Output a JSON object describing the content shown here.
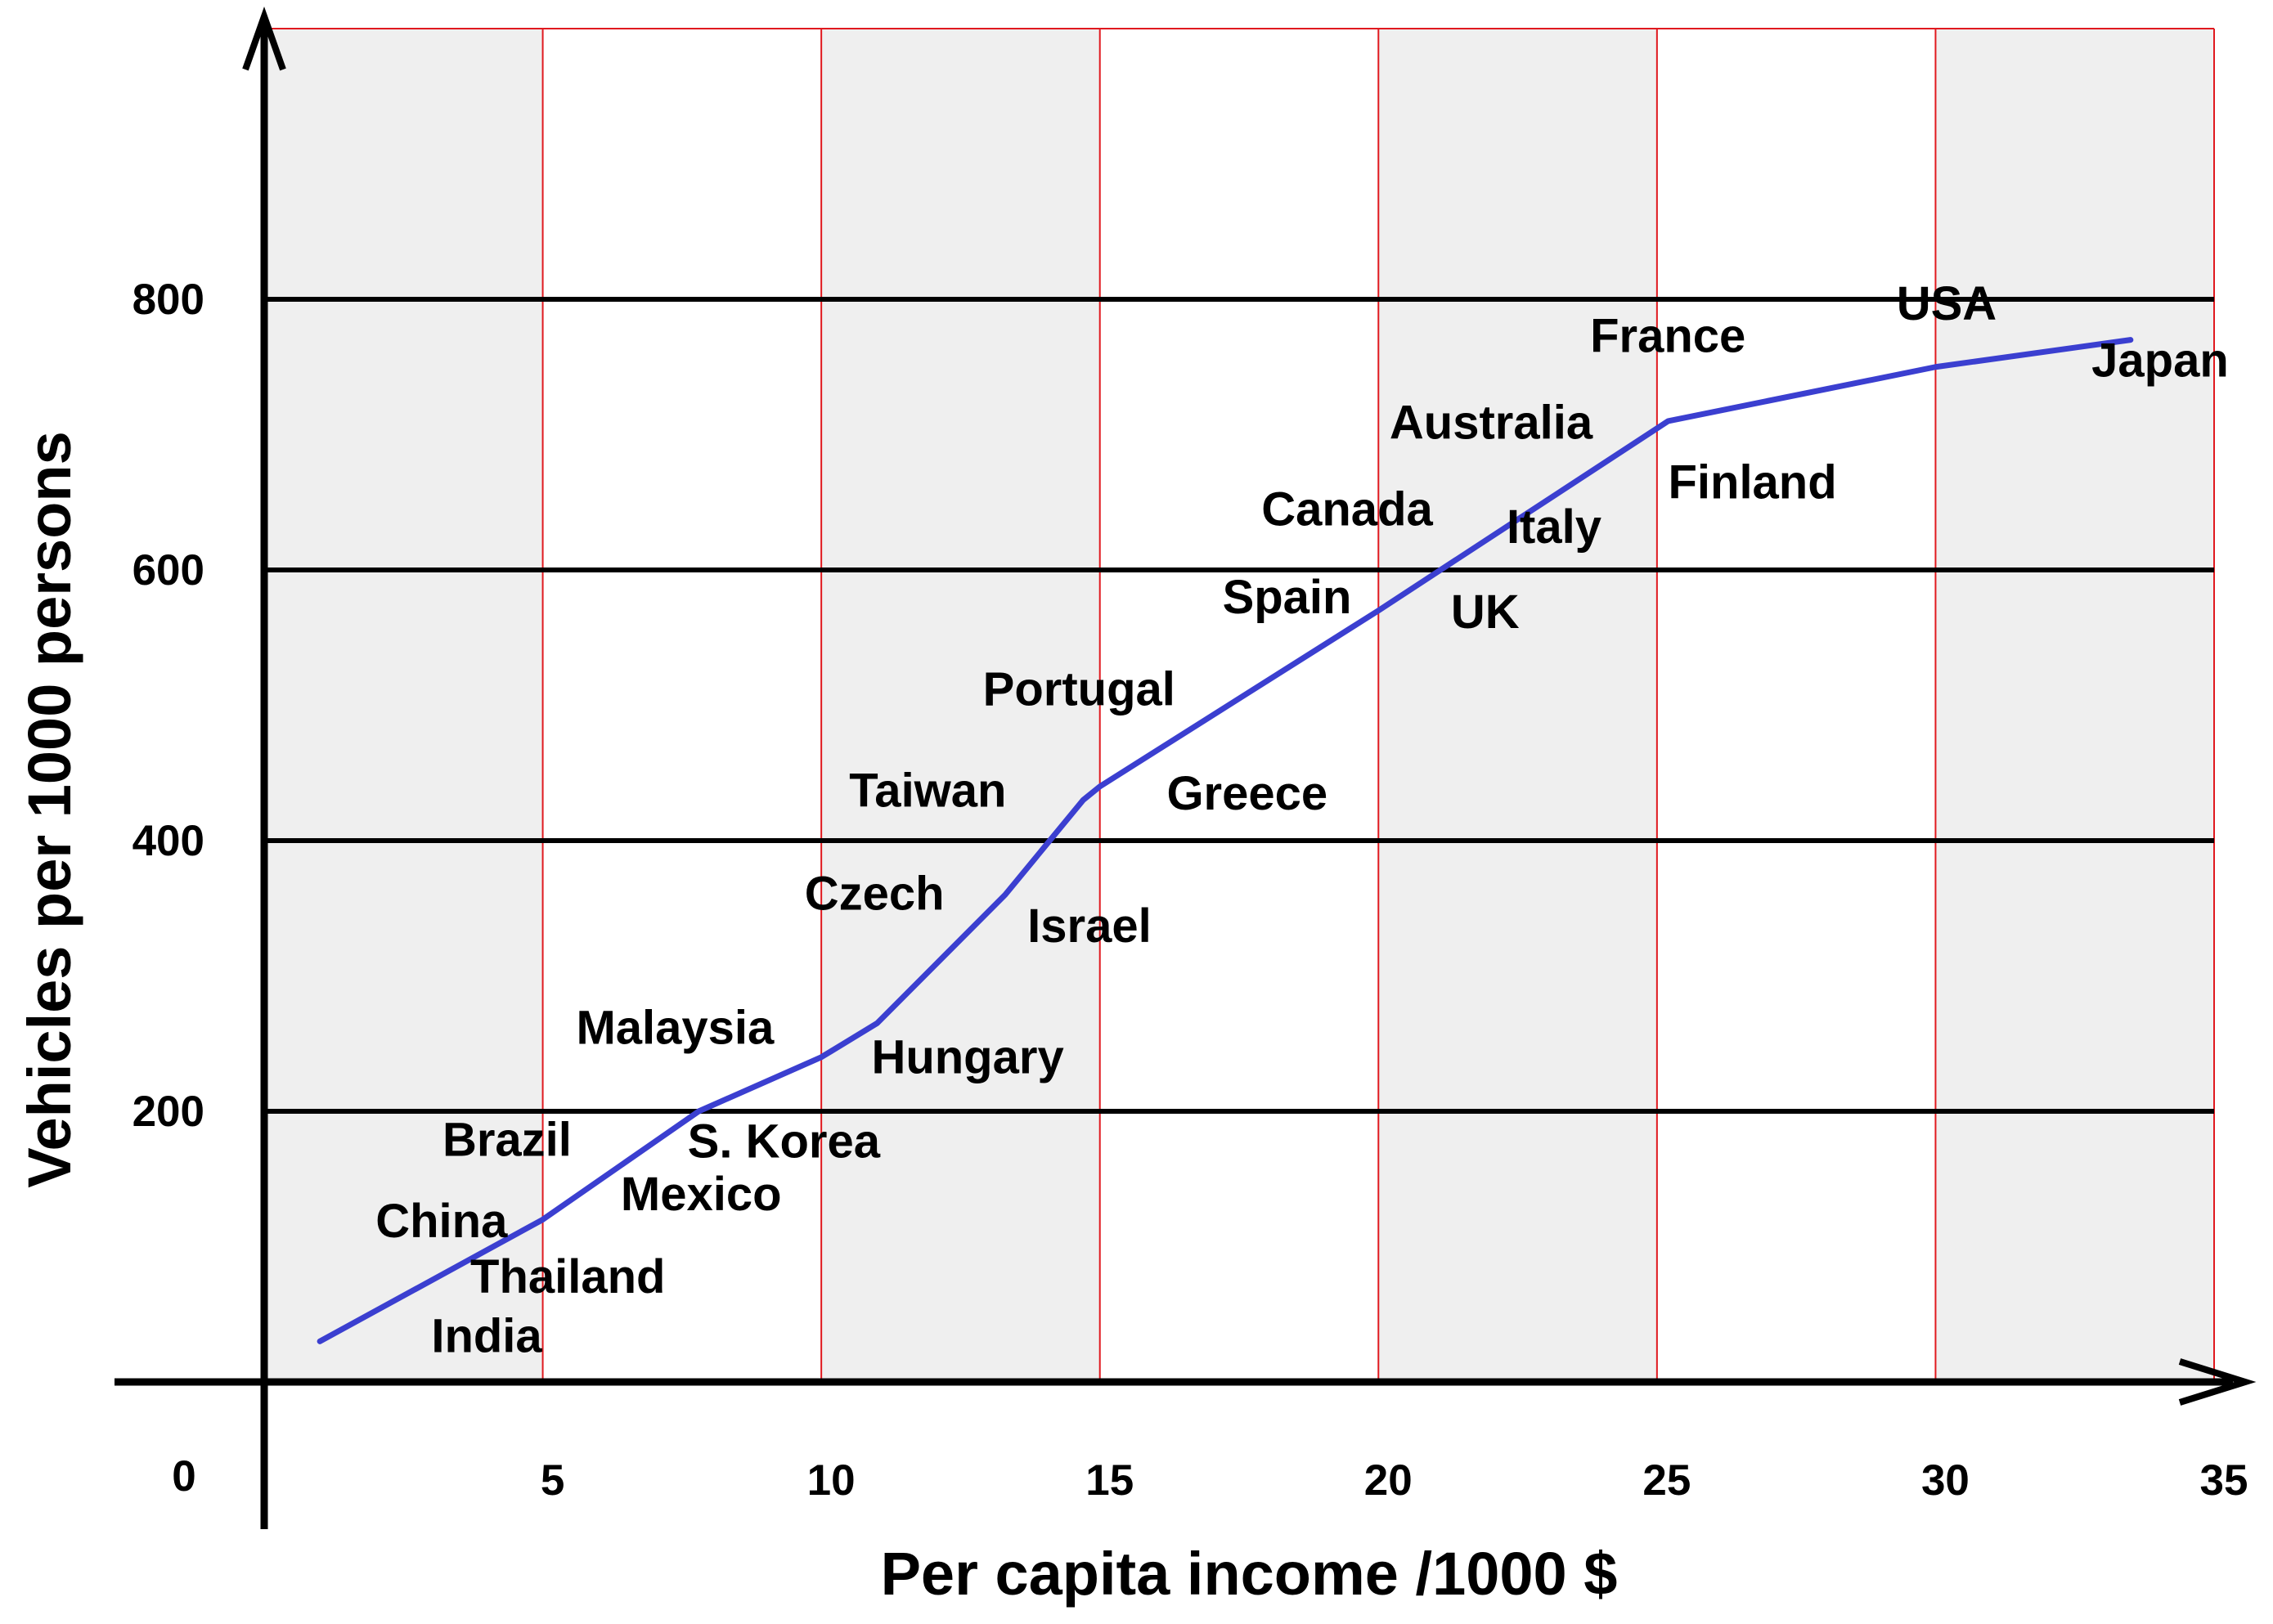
{
  "chart_data": {
    "type": "line",
    "xlabel": "Per capita income /1000 $",
    "ylabel": "Vehicles per 1000 persons",
    "xlim": [
      0,
      35
    ],
    "ylim": [
      0,
      1000
    ],
    "x_ticks": [
      "0",
      "5",
      "10",
      "15",
      "20",
      "25",
      "30",
      "35"
    ],
    "y_ticks": [
      "200",
      "400",
      "600",
      "800"
    ],
    "grid": "vertical red lines every 5 units, horizontal black lines every 200 units, alternating grey and white bands",
    "colors": {
      "line": "#3b3fd0",
      "vgrid": "#e0191f",
      "hgrid": "#000000",
      "band": "#efefef"
    },
    "series": [
      {
        "x": [
          1,
          5,
          7.8,
          10,
          11,
          13.3,
          14.7,
          15,
          20,
          21.3,
          25.2,
          30,
          33.5
        ],
        "y": [
          30,
          120,
          200,
          240,
          265,
          360,
          430,
          440,
          570,
          605,
          710,
          750,
          770
        ]
      }
    ],
    "annotations": [
      {
        "text": "China",
        "x": 2.0,
        "y": 107
      },
      {
        "text": "India",
        "x": 3.0,
        "y": 22
      },
      {
        "text": "Thailand",
        "x": 3.7,
        "y": 66
      },
      {
        "text": "Brazil",
        "x": 3.2,
        "y": 167
      },
      {
        "text": "Mexico",
        "x": 6.4,
        "y": 127
      },
      {
        "text": "S. Korea",
        "x": 7.6,
        "y": 166
      },
      {
        "text": "Malaysia",
        "x": 5.6,
        "y": 250
      },
      {
        "text": "Hungary",
        "x": 10.9,
        "y": 228
      },
      {
        "text": "Czech",
        "x": 9.7,
        "y": 349
      },
      {
        "text": "Israel",
        "x": 13.7,
        "y": 325
      },
      {
        "text": "Taiwan",
        "x": 10.5,
        "y": 425
      },
      {
        "text": "Greece",
        "x": 16.2,
        "y": 423
      },
      {
        "text": "Portugal",
        "x": 12.9,
        "y": 500
      },
      {
        "text": "Spain",
        "x": 17.2,
        "y": 568
      },
      {
        "text": "UK",
        "x": 21.3,
        "y": 557
      },
      {
        "text": "Canada",
        "x": 17.9,
        "y": 633
      },
      {
        "text": "Italy",
        "x": 22.3,
        "y": 620
      },
      {
        "text": "Australia",
        "x": 20.2,
        "y": 697
      },
      {
        "text": "Finland",
        "x": 25.2,
        "y": 653
      },
      {
        "text": "France",
        "x": 23.8,
        "y": 761
      },
      {
        "text": "USA",
        "x": 29.3,
        "y": 785
      },
      {
        "text": "Japan",
        "x": 32.8,
        "y": 743
      }
    ]
  }
}
